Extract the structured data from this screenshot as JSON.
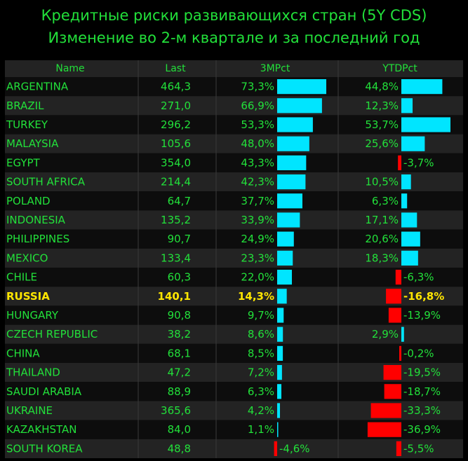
{
  "title": "Кредитные риски развивающихся стран (5Y CDS)",
  "subtitle": "Изменение во 2-м квартале и за последний год",
  "colors": {
    "header_text": "#22e03a",
    "country_text": "#22e03a",
    "value_text": "#22e03a",
    "highlight_text": "#ffe600",
    "positive_bar": "#00e5ff",
    "negative_bar": "#ff0000",
    "row_dark": "#0d0d0d",
    "row_light": "#232323",
    "divider": "#3a3a3a"
  },
  "chart_data": {
    "type": "table",
    "columns": [
      "Name",
      "Last",
      "3MPct",
      "YTDPct"
    ],
    "highlight_row": "RUSSIA",
    "rows": [
      {
        "name": "ARGENTINA",
        "last": "464,3",
        "m3": 73.3,
        "m3_label": "73,3%",
        "ytd": 44.8,
        "ytd_label": "44,8%"
      },
      {
        "name": "BRAZIL",
        "last": "271,0",
        "m3": 66.9,
        "m3_label": "66,9%",
        "ytd": 12.3,
        "ytd_label": "12,3%"
      },
      {
        "name": "TURKEY",
        "last": "296,2",
        "m3": 53.3,
        "m3_label": "53,3%",
        "ytd": 53.7,
        "ytd_label": "53,7%"
      },
      {
        "name": "MALAYSIA",
        "last": "105,6",
        "m3": 48.0,
        "m3_label": "48,0%",
        "ytd": 25.6,
        "ytd_label": "25,6%"
      },
      {
        "name": "EGYPT",
        "last": "354,0",
        "m3": 43.3,
        "m3_label": "43,3%",
        "ytd": -3.7,
        "ytd_label": "-3,7%"
      },
      {
        "name": "SOUTH AFRICA",
        "last": "214,4",
        "m3": 42.3,
        "m3_label": "42,3%",
        "ytd": 10.5,
        "ytd_label": "10,5%"
      },
      {
        "name": "POLAND",
        "last": "64,7",
        "m3": 37.7,
        "m3_label": "37,7%",
        "ytd": 6.3,
        "ytd_label": "6,3%"
      },
      {
        "name": "INDONESIA",
        "last": "135,2",
        "m3": 33.9,
        "m3_label": "33,9%",
        "ytd": 17.1,
        "ytd_label": "17,1%"
      },
      {
        "name": "PHILIPPINES",
        "last": "90,7",
        "m3": 24.9,
        "m3_label": "24,9%",
        "ytd": 20.6,
        "ytd_label": "20,6%"
      },
      {
        "name": "MEXICO",
        "last": "133,4",
        "m3": 23.3,
        "m3_label": "23,3%",
        "ytd": 18.3,
        "ytd_label": "18,3%"
      },
      {
        "name": "CHILE",
        "last": "60,3",
        "m3": 22.0,
        "m3_label": "22,0%",
        "ytd": -6.3,
        "ytd_label": "-6,3%"
      },
      {
        "name": "RUSSIA",
        "last": "140,1",
        "m3": 14.3,
        "m3_label": "14,3%",
        "ytd": -16.8,
        "ytd_label": "-16,8%"
      },
      {
        "name": "HUNGARY",
        "last": "90,8",
        "m3": 9.7,
        "m3_label": "9,7%",
        "ytd": -13.9,
        "ytd_label": "-13,9%"
      },
      {
        "name": "CZECH REPUBLIC",
        "last": "38,2",
        "m3": 8.6,
        "m3_label": "8,6%",
        "ytd": 2.9,
        "ytd_label": "2,9%"
      },
      {
        "name": "CHINA",
        "last": "68,1",
        "m3": 8.5,
        "m3_label": "8,5%",
        "ytd": -0.2,
        "ytd_label": "-0,2%"
      },
      {
        "name": "THAILAND",
        "last": "47,2",
        "m3": 7.2,
        "m3_label": "7,2%",
        "ytd": -19.5,
        "ytd_label": "-19,5%"
      },
      {
        "name": "SAUDI ARABIA",
        "last": "88,9",
        "m3": 6.3,
        "m3_label": "6,3%",
        "ytd": -18.7,
        "ytd_label": "-18,7%"
      },
      {
        "name": "UKRAINE",
        "last": "365,6",
        "m3": 4.2,
        "m3_label": "4,2%",
        "ytd": -33.3,
        "ytd_label": "-33,3%"
      },
      {
        "name": "KAZAKHSTAN",
        "last": "84,0",
        "m3": 1.1,
        "m3_label": "1,1%",
        "ytd": -36.9,
        "ytd_label": "-36,9%"
      },
      {
        "name": "SOUTH KOREA",
        "last": "48,8",
        "m3": -4.6,
        "m3_label": "-4,6%",
        "ytd": -5.5,
        "ytd_label": "-5,5%"
      }
    ]
  }
}
